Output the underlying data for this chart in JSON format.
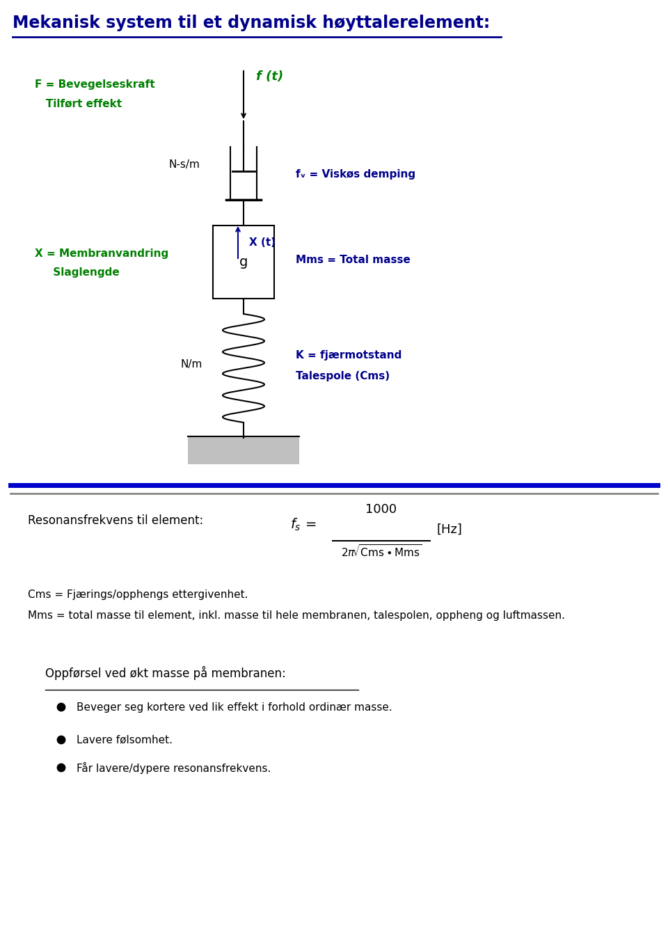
{
  "title": "Mekanisk system til et dynamisk høyttalerelement:",
  "title_color": "#00008B",
  "bg_color": "#ffffff",
  "green_color": "#008000",
  "blue_color": "#00008B",
  "black_color": "#000000",
  "gray_color": "#C0C0C0",
  "label_F_line1": "F = Bevegelseskraft",
  "label_F_line2": "   Tilført effekt",
  "label_ft": "f (t)",
  "label_fv": "fᵥ = Viskøs demping",
  "label_Ns_m": "N-s/m",
  "label_X_arrow": "X (t)",
  "label_Xdef_line1": "X = Membranvandring",
  "label_Xdef_line2": "     Slaglengde",
  "label_g": "g",
  "label_Mms": "Mms = Total masse",
  "label_N_m": "N/m",
  "label_K_line1": "K = fjærmotstand",
  "label_K_line2": "Talespole (Cms)",
  "resonans_text": "Resonansfrekvens til element:",
  "cms_def": "Cms = Fjærings/opphengs ettergivenhet.",
  "mms_def": "Mms = total masse til element, inkl. masse til hele membranen, talespolen, oppheng og luftmassen.",
  "behavior_title": "Oppførsel ved økt masse på membranen:",
  "bullet1": "Beveger seg kortere ved lik effekt i forhold ordinær masse.",
  "bullet2": "Lavere følsomhet.",
  "bullet3": "Får lavere/dypere resonansfrekvens."
}
